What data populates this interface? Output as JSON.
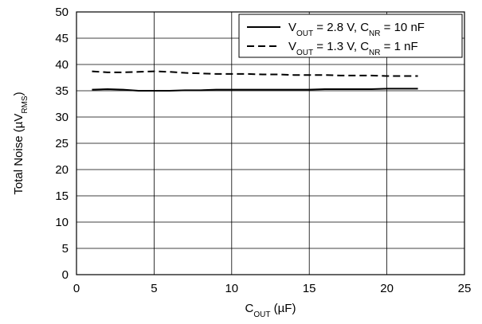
{
  "chart_data": {
    "type": "line",
    "title": "",
    "xlabel": {
      "main": "C",
      "sub": "OUT",
      "unit": " (µF)"
    },
    "ylabel": {
      "main": "Total Noise (µV",
      "sub": "RMS",
      "suffix": ")"
    },
    "xlim": [
      0,
      25
    ],
    "ylim": [
      0,
      50
    ],
    "xticks": [
      0,
      5,
      10,
      15,
      20,
      25
    ],
    "yticks": [
      0,
      5,
      10,
      15,
      20,
      25,
      30,
      35,
      40,
      45,
      50
    ],
    "grid": true,
    "legend_position": "top-right",
    "series": [
      {
        "label_parts": [
          {
            "t": "V",
            "sub": false
          },
          {
            "t": "OUT",
            "sub": true
          },
          {
            "t": " = 2.8 V, C",
            "sub": false
          },
          {
            "t": "NR",
            "sub": true
          },
          {
            "t": " = 10 nF",
            "sub": false
          }
        ],
        "style": "solid",
        "color": "#000000",
        "x": [
          1,
          2,
          3,
          4,
          5,
          6,
          7,
          8,
          9,
          10,
          11,
          12,
          13,
          14,
          15,
          16,
          17,
          18,
          19,
          20,
          21,
          22
        ],
        "y": [
          35.2,
          35.3,
          35.2,
          35.0,
          35.0,
          35.0,
          35.1,
          35.1,
          35.2,
          35.2,
          35.2,
          35.2,
          35.2,
          35.2,
          35.2,
          35.3,
          35.3,
          35.3,
          35.3,
          35.4,
          35.4,
          35.4
        ]
      },
      {
        "label_parts": [
          {
            "t": "V",
            "sub": false
          },
          {
            "t": "OUT",
            "sub": true
          },
          {
            "t": " = 1.3 V, C",
            "sub": false
          },
          {
            "t": "NR",
            "sub": true
          },
          {
            "t": " = 1 nF",
            "sub": false
          }
        ],
        "style": "dashed",
        "color": "#000000",
        "x": [
          1,
          2,
          3,
          4,
          5,
          6,
          7,
          8,
          9,
          10,
          11,
          12,
          13,
          14,
          15,
          16,
          17,
          18,
          19,
          20,
          21,
          22
        ],
        "y": [
          38.7,
          38.5,
          38.5,
          38.6,
          38.7,
          38.6,
          38.4,
          38.3,
          38.2,
          38.2,
          38.2,
          38.1,
          38.1,
          38.0,
          38.0,
          38.0,
          37.9,
          37.9,
          37.9,
          37.8,
          37.8,
          37.8
        ]
      }
    ]
  }
}
